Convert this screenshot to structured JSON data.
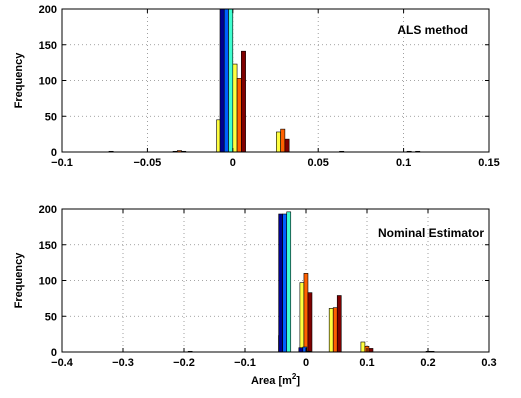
{
  "chart_data": [
    {
      "type": "bar",
      "annotation": "ALS method",
      "xlabel": "",
      "ylabel": "Frequency",
      "xlim": [
        -0.1,
        0.15
      ],
      "ylim": [
        0,
        200
      ],
      "xticks": [
        -0.1,
        -0.05,
        0,
        0.05,
        0.1,
        0.15
      ],
      "xtick_labels": [
        "−0.1",
        "−0.05",
        "0",
        "0.05",
        "0.1",
        "0.15"
      ],
      "yticks": [
        0,
        50,
        100,
        150,
        200
      ],
      "ytick_labels": [
        "0",
        "50",
        "100",
        "150",
        "200"
      ],
      "grid": true,
      "bin_width": 0.0025,
      "series_colors": [
        "#00008f",
        "#0060ff",
        "#40ffd0",
        "#ffff40",
        "#ff6000",
        "#800000"
      ],
      "bins": [
        {
          "center": -0.0095,
          "values": [
            0,
            0,
            0,
            45,
            58,
            37
          ]
        },
        {
          "center": 0.0,
          "values": [
            200,
            200,
            200,
            123,
            103,
            141
          ]
        },
        {
          "center": 0.0255,
          "values": [
            0,
            0,
            0,
            28,
            32,
            18
          ]
        },
        {
          "center": -0.035,
          "values": [
            0,
            0,
            0,
            1,
            2,
            1
          ]
        },
        {
          "center": -0.075,
          "values": [
            0,
            0,
            0,
            0,
            1,
            0
          ]
        },
        {
          "center": 0.06,
          "values": [
            0,
            0,
            0,
            0,
            1,
            0
          ]
        },
        {
          "center": 0.102,
          "values": [
            0,
            0,
            0,
            1,
            0,
            1
          ]
        }
      ]
    },
    {
      "type": "bar",
      "annotation": "Nominal Estimator",
      "xlabel": "Area [m",
      "xlabel_superscript": "2",
      "xlabel_suffix": "]",
      "ylabel": "Frequency",
      "xlim": [
        -0.4,
        0.3
      ],
      "ylim": [
        0,
        200
      ],
      "xticks": [
        -0.4,
        -0.3,
        -0.2,
        -0.1,
        0,
        0.1,
        0.2,
        0.3
      ],
      "xtick_labels": [
        "−0.4",
        "−0.3",
        "−0.2",
        "−0.1",
        "0",
        "0.1",
        "0.2",
        "0.3"
      ],
      "yticks": [
        0,
        50,
        100,
        150,
        200
      ],
      "ytick_labels": [
        "0",
        "50",
        "100",
        "150",
        "200"
      ],
      "grid": true,
      "bin_width": 0.0066,
      "series_colors": [
        "#00008f",
        "#0060ff",
        "#40ffd0",
        "#ffff40",
        "#ff6000",
        "#800000"
      ],
      "bins": [
        {
          "center": -0.045,
          "values": [
            0,
            0,
            0,
            23,
            17,
            29
          ]
        },
        {
          "center": -0.025,
          "values": [
            193,
            193,
            196,
            0,
            0,
            0
          ]
        },
        {
          "center": -0.01,
          "values": [
            0,
            0,
            0,
            97,
            110,
            83
          ]
        },
        {
          "center": 0.008,
          "values": [
            6,
            7,
            1,
            0,
            0,
            0
          ]
        },
        {
          "center": 0.038,
          "values": [
            0,
            0,
            0,
            61,
            62,
            79
          ]
        },
        {
          "center": 0.09,
          "values": [
            0,
            0,
            0,
            14,
            8,
            5
          ]
        },
        {
          "center": -0.18,
          "values": [
            0,
            1,
            0,
            0,
            0,
            0
          ]
        },
        {
          "center": 0.21,
          "values": [
            0,
            1,
            1,
            0,
            0,
            0
          ]
        }
      ]
    }
  ]
}
